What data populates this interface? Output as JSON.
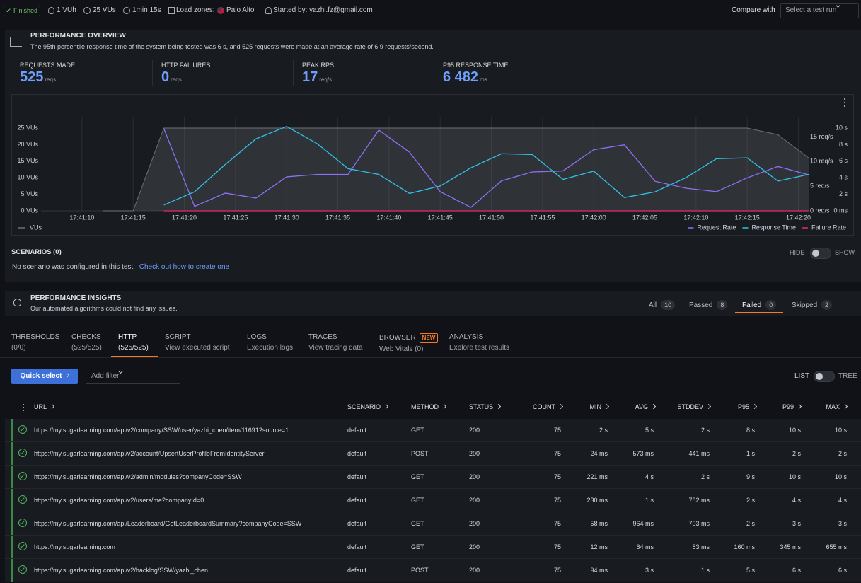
{
  "header": {
    "status": "Finished",
    "vuh": "1 VUh",
    "vus": "25 VUs",
    "duration": "1min 15s",
    "load_zones": "Load zones:",
    "zone": "Palo Alto",
    "started_by": "Started by: yazhi.fz@gmail.com",
    "compare_label": "Compare with",
    "compare_placeholder": "Select a test run"
  },
  "overview": {
    "title": "PERFORMANCE OVERVIEW",
    "summary": "The 95th percentile response time of the system being tested was 6 s, and 525 requests were made at an average rate of 6.9 requests/second.",
    "stats": [
      {
        "label": "REQUESTS MADE",
        "value": 525,
        "unit": "reqs"
      },
      {
        "label": "HTTP FAILURES",
        "value": 0,
        "unit": "reqs"
      },
      {
        "label": "PEAK RPS",
        "value": 17,
        "unit": "req/s"
      },
      {
        "label": "P95 RESPONSE TIME",
        "value": "6 482",
        "unit": "ms"
      }
    ],
    "chart": {
      "type": "line",
      "x": [
        "17:41:12",
        "17:41:15",
        "17:41:18",
        "17:41:21",
        "17:41:24",
        "17:41:27",
        "17:41:30",
        "17:41:33",
        "17:41:36",
        "17:41:39",
        "17:41:42",
        "17:41:45",
        "17:41:48",
        "17:41:51",
        "17:41:54",
        "17:41:57",
        "17:42:00",
        "17:42:03",
        "17:42:06",
        "17:42:09",
        "17:42:12",
        "17:42:15",
        "17:42:18",
        "17:42:21"
      ],
      "xlim": [
        "17:41:06",
        "17:42:21"
      ],
      "xticks": [
        "17:41:10",
        "17:41:15",
        "17:41:20",
        "17:41:25",
        "17:41:30",
        "17:41:35",
        "17:41:40",
        "17:41:45",
        "17:41:50",
        "17:41:55",
        "17:42:00",
        "17:42:05",
        "17:42:10",
        "17:42:15",
        "17:42:20"
      ],
      "ylim": [
        0,
        25
      ],
      "yticks": [
        {
          "value": 0,
          "label": "0 VUs"
        },
        {
          "value": 5,
          "label": "5 VUs"
        },
        {
          "value": 10,
          "label": "10 VUs"
        },
        {
          "value": 15,
          "label": "15 VUs"
        },
        {
          "value": 20,
          "label": "20 VUs"
        },
        {
          "value": 25,
          "label": "25 VUs"
        }
      ],
      "y2lim": [
        0,
        16.8
      ],
      "y2ticks": [
        {
          "value": 0,
          "label": "0 req/s"
        },
        {
          "value": 5,
          "label": "5 req/s"
        },
        {
          "value": 10,
          "label": "10 req/s"
        },
        {
          "value": 15,
          "label": "15 req/s"
        }
      ],
      "y3lim": [
        0,
        10
      ],
      "y3ticks": [
        {
          "value": 0,
          "label": "0 ms"
        },
        {
          "value": 2,
          "label": "2 s"
        },
        {
          "value": 4,
          "label": "4 s"
        },
        {
          "value": 6,
          "label": "6 s"
        },
        {
          "value": 8,
          "label": "8 s"
        },
        {
          "value": 10,
          "label": "10 s"
        }
      ],
      "grid": true,
      "series": [
        {
          "name": "VUs",
          "color": "#6e7079",
          "axis": "y",
          "area": true,
          "values": [
            0,
            0,
            25,
            25,
            25,
            25,
            25,
            25,
            25,
            25,
            25,
            25,
            25,
            25,
            25,
            25,
            25,
            25,
            25,
            25,
            25,
            25,
            23,
            16
          ]
        },
        {
          "name": "Request Rate",
          "color": "#8f6ff5",
          "axis": "y2",
          "values": [
            null,
            null,
            16.7,
            0.9,
            3.6,
            2.6,
            6.9,
            7.4,
            7.4,
            16.4,
            11.9,
            3.9,
            0.7,
            6.1,
            7.9,
            8.1,
            12.4,
            13.4,
            6,
            4.6,
            3.9,
            6.7,
            9,
            7.3
          ]
        },
        {
          "name": "Response Time",
          "color": "#2fc3e8",
          "axis": "y3",
          "values": [
            null,
            null,
            0.7,
            2.3,
            5.6,
            8.7,
            10.2,
            8.1,
            5.1,
            4.4,
            2.1,
            3.0,
            5.2,
            6.9,
            6.8,
            3.8,
            4.8,
            1.6,
            2.3,
            4.0,
            6.3,
            6.4,
            3.6,
            4.4
          ]
        },
        {
          "name": "Failure Rate",
          "color": "#e8296b",
          "axis": "y2",
          "values": [
            null,
            null,
            0,
            0,
            0,
            0,
            0,
            0,
            0,
            0,
            0,
            0,
            0,
            0,
            0,
            0,
            0,
            0,
            0,
            0,
            0,
            0,
            0,
            0
          ]
        }
      ]
    }
  },
  "scenarios": {
    "title": "SCENARIOS (0)",
    "hide": "HIDE",
    "show": "SHOW",
    "message": "No scenario was configured in this test.",
    "link": "Check out how to create one"
  },
  "insights": {
    "title": "PERFORMANCE INSIGHTS",
    "subtitle": "Our automated algorithms could not find any issues.",
    "filters": [
      {
        "label": "All",
        "count": 10
      },
      {
        "label": "Passed",
        "count": 8
      },
      {
        "label": "Failed",
        "count": 0
      },
      {
        "label": "Skipped",
        "count": 2
      }
    ]
  },
  "tabs": [
    {
      "title": "THRESHOLDS",
      "sub": "(0/0)"
    },
    {
      "title": "CHECKS",
      "sub": "(525/525)"
    },
    {
      "title": "HTTP",
      "sub": "(525/525)"
    },
    {
      "title": "SCRIPT",
      "sub": "View executed script"
    },
    {
      "title": "LOGS",
      "sub": "Execution logs"
    },
    {
      "title": "TRACES",
      "sub": "View tracing data"
    },
    {
      "title": "BROWSER",
      "sub": "Web Vitals (0)",
      "badge": "NEW"
    },
    {
      "title": "ANALYSIS",
      "sub": "Explore test results"
    }
  ],
  "toolbar": {
    "quick_select": "Quick select",
    "filter_placeholder": "Add filter",
    "list": "LIST",
    "tree": "TREE"
  },
  "table": {
    "columns": [
      "URL",
      "SCENARIO",
      "METHOD",
      "STATUS",
      "COUNT",
      "MIN",
      "AVG",
      "STDDEV",
      "P95",
      "P99",
      "MAX"
    ],
    "rows": [
      [
        "https://my.sugarlearning.com/api/v2/company/SSW/user/yazhi_chen/item/11691?source=1",
        "default",
        "GET",
        200,
        75,
        "2 s",
        "5 s",
        "2 s",
        "8 s",
        "10 s",
        "10 s"
      ],
      [
        "https://my.sugarlearning.com/api/v2/account/UpsertUserProfileFromIdentityServer",
        "default",
        "POST",
        200,
        75,
        "24 ms",
        "573 ms",
        "441 ms",
        "1 s",
        "2 s",
        "2 s"
      ],
      [
        "https://my.sugarlearning.com/api/v2/admin/modules?companyCode=SSW",
        "default",
        "GET",
        200,
        75,
        "221 ms",
        "4 s",
        "2 s",
        "9 s",
        "10 s",
        "10 s"
      ],
      [
        "https://my.sugarlearning.com/api/v2/users/me?companyId=0",
        "default",
        "GET",
        200,
        75,
        "230 ms",
        "1 s",
        "782 ms",
        "2 s",
        "4 s",
        "4 s"
      ],
      [
        "https://my.sugarlearning.com/api/Leaderboard/GetLeaderboardSummary?companyCode=SSW",
        "default",
        "GET",
        200,
        75,
        "58 ms",
        "964 ms",
        "703 ms",
        "2 s",
        "3 s",
        "3 s"
      ],
      [
        "https://my.sugarlearning.com",
        "default",
        "GET",
        200,
        75,
        "12 ms",
        "64 ms",
        "83 ms",
        "160 ms",
        "345 ms",
        "655 ms"
      ],
      [
        "https://my.sugarlearning.com/api/v2/backlog/SSW/yazhi_chen",
        "default",
        "POST",
        200,
        75,
        "94 ms",
        "3 s",
        "1 s",
        "5 s",
        "6 s",
        "6 s"
      ]
    ]
  }
}
